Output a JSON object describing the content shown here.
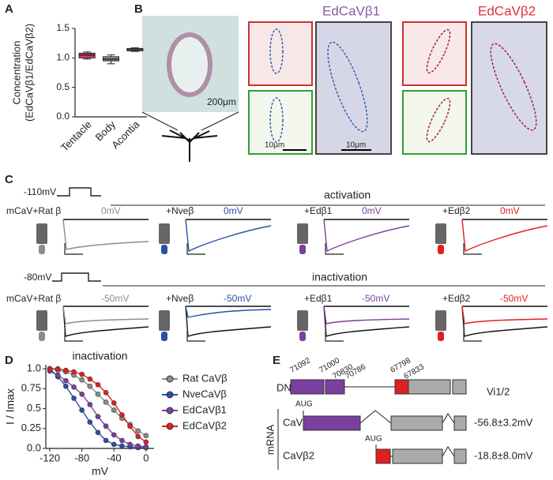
{
  "chart_data": [
    {
      "type": "box",
      "panel": "A",
      "ylabel": [
        "Concentration",
        "(EdCaVβ1/EdCaVβ2)"
      ],
      "categories": [
        "Tentacle",
        "Body",
        "Acontia"
      ],
      "min": [
        0.98,
        0.9,
        1.11
      ],
      "q1": [
        1.0,
        0.95,
        1.12
      ],
      "median": [
        1.05,
        0.98,
        1.14
      ],
      "q3": [
        1.08,
        1.02,
        1.16
      ],
      "max": [
        1.1,
        1.05,
        1.17
      ],
      "colors": [
        "#e0307a",
        "#9a9a9a",
        "#b0b0b0"
      ],
      "ylim": [
        0,
        1.5
      ],
      "yticks": [
        {
          "value": 0,
          "label": "0.0"
        },
        {
          "value": 0.5,
          "label": "0.5"
        },
        {
          "value": 1,
          "label": "1.0"
        },
        {
          "value": 1.5,
          "label": "1.5"
        }
      ]
    },
    {
      "type": "line",
      "panel": "D",
      "title": "inactivation",
      "xlabel": "mV",
      "ylabel": "I / Imax",
      "x": [
        -120,
        -110,
        -100,
        -90,
        -80,
        -70,
        -60,
        -50,
        -40,
        -30,
        -20,
        -10,
        0
      ],
      "series": [
        {
          "name": "Rat CaVβ",
          "color": "#8c8c8c",
          "values": [
            1.0,
            0.98,
            0.96,
            0.92,
            0.86,
            0.78,
            0.68,
            0.58,
            0.48,
            0.38,
            0.3,
            0.22,
            0.16
          ]
        },
        {
          "name": "NveCaVβ",
          "color": "#2b4fa8",
          "values": [
            1.0,
            0.9,
            0.78,
            0.63,
            0.48,
            0.33,
            0.2,
            0.1,
            0.05,
            0.03,
            0.02,
            0.01,
            0.01
          ]
        },
        {
          "name": "EdCaVβ1",
          "color": "#7b3fa0",
          "values": [
            0.97,
            0.92,
            0.85,
            0.77,
            0.68,
            0.55,
            0.4,
            0.28,
            0.17,
            0.1,
            0.05,
            0.03,
            0.02
          ]
        },
        {
          "name": "EdCaVβ2",
          "color": "#e02020",
          "values": [
            1.0,
            1.0,
            0.98,
            0.96,
            0.93,
            0.87,
            0.8,
            0.7,
            0.57,
            0.42,
            0.28,
            0.15,
            0.08
          ]
        }
      ],
      "xlim": [
        -125,
        10
      ],
      "xticks": [
        -120,
        -80,
        -40,
        0
      ],
      "ylim": [
        0,
        1.05
      ],
      "yticks": [
        {
          "value": 0,
          "label": "0.0"
        },
        {
          "value": 0.25,
          "label": "0.25"
        },
        {
          "value": 0.5,
          "label": "0.5"
        },
        {
          "value": 0.75,
          "label": "0.75"
        },
        {
          "value": 1,
          "label": "1.0"
        }
      ],
      "legend": "right"
    }
  ],
  "panel_b": {
    "label": "B",
    "title_1": "EdCaVβ1",
    "title_2": "EdCaVβ2",
    "scale_1": "200μm",
    "scale_2": "10μm",
    "scale_3": "10μm"
  },
  "panel_c": {
    "label": "C",
    "hold_1": "-110mV",
    "protocol_1": "activation",
    "hold_2": "-80mV",
    "protocol_2": "inactivation",
    "row_1": [
      {
        "name": "mCaV+Rat β",
        "step": "0mV"
      },
      {
        "name": "+Nveβ",
        "step": "0mV"
      },
      {
        "name": "+Edβ1",
        "step": "0mV"
      },
      {
        "name": "+Edβ2",
        "step": "0mV"
      }
    ],
    "row_2": [
      {
        "name": "mCaV+Rat β",
        "step": "-50mV"
      },
      {
        "name": "+Nveβ",
        "step": "-50mV"
      },
      {
        "name": "+Edβ1",
        "step": "-50mV"
      },
      {
        "name": "+Edβ2",
        "step": "-50mV"
      }
    ]
  },
  "panel_e": {
    "label": "E",
    "dna": "DNA",
    "positions": [
      "71092",
      "71000",
      "70830",
      "70786",
      "67798",
      "67833"
    ],
    "mrna": "mRNA",
    "aug_1": "AUG",
    "aug_2": "AUG",
    "isoform_1": "CaVβ1",
    "isoform_2": "CaVβ2",
    "v_header": "Vi1/2",
    "v_1": "-56.8±3.2mV",
    "v_2": "-18.8±8.0mV"
  },
  "panel_labels": {
    "a": "A",
    "d": "D"
  }
}
